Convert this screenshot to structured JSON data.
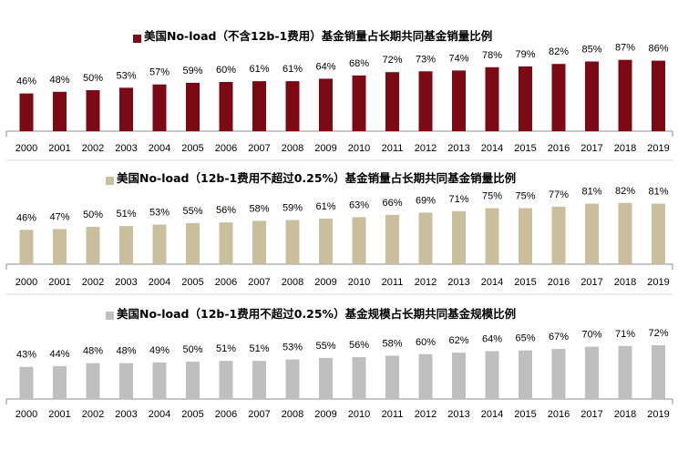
{
  "chart_data": [
    {
      "type": "bar",
      "title": "美国No-load（不含12b-1费用）基金销量占长期共同基金销量比例",
      "legend": "top-center",
      "unit": "%",
      "categories": [
        "2000",
        "2001",
        "2002",
        "2003",
        "2004",
        "2005",
        "2006",
        "2007",
        "2008",
        "2009",
        "2010",
        "2011",
        "2012",
        "2013",
        "2014",
        "2015",
        "2016",
        "2017",
        "2018",
        "2019"
      ],
      "values": [
        46,
        48,
        50,
        53,
        57,
        59,
        60,
        61,
        61,
        64,
        68,
        72,
        73,
        74,
        78,
        79,
        82,
        85,
        87,
        86
      ],
      "color": "#7b0a14"
    },
    {
      "type": "bar",
      "title": "美国No-load（12b-1费用不超过0.25%）基金销量占长期共同基金销量比例",
      "legend": "top-center",
      "unit": "%",
      "categories": [
        "2000",
        "2001",
        "2002",
        "2003",
        "2004",
        "2005",
        "2006",
        "2007",
        "2008",
        "2009",
        "2010",
        "2011",
        "2012",
        "2013",
        "2014",
        "2015",
        "2016",
        "2017",
        "2018",
        "2019"
      ],
      "values": [
        46,
        47,
        50,
        51,
        53,
        55,
        56,
        58,
        59,
        61,
        63,
        66,
        69,
        71,
        75,
        75,
        77,
        81,
        82,
        81
      ],
      "color": "#c9bf9c"
    },
    {
      "type": "bar",
      "title": "美国No-load（12b-1费用不超过0.25%）基金规模占长期共同基金规模比例",
      "legend": "top-center",
      "unit": "%",
      "categories": [
        "2000",
        "2001",
        "2002",
        "2003",
        "2004",
        "2005",
        "2006",
        "2007",
        "2008",
        "2009",
        "2010",
        "2011",
        "2012",
        "2013",
        "2014",
        "2015",
        "2016",
        "2017",
        "2018",
        "2019"
      ],
      "values": [
        43,
        44,
        48,
        48,
        49,
        50,
        51,
        51,
        53,
        55,
        56,
        58,
        60,
        62,
        64,
        65,
        67,
        70,
        71,
        72
      ],
      "color": "#bfbfbf"
    }
  ]
}
